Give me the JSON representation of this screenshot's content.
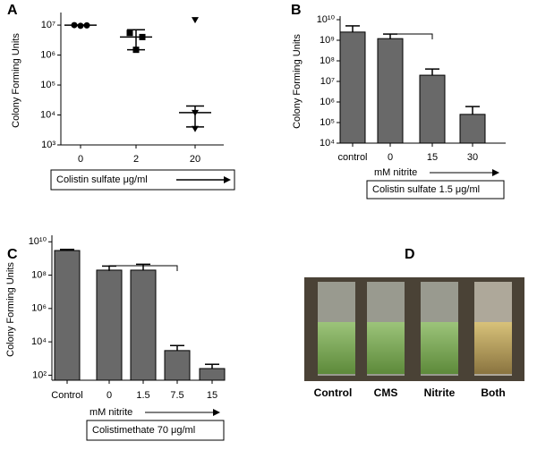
{
  "chart_data": [
    {
      "type": "scatter",
      "panel": "A",
      "ylabel": "Colony Forming Units",
      "xlabel": "Colistin sulfate μg/ml",
      "categories": [
        "0",
        "2",
        "20"
      ],
      "points": [
        [
          10000000,
          9500000,
          9800000
        ],
        [
          5500000,
          1500000,
          4000000
        ],
        [
          15000000,
          3500,
          12000
        ]
      ],
      "values": [
        10000000,
        4000000,
        12000
      ],
      "upper": [
        10000000,
        7000000,
        20000
      ],
      "lower": [
        10000000,
        1500000,
        4000
      ],
      "log_y": true,
      "ylim": [
        1000,
        20000000
      ],
      "yticks": [
        {
          "value": 1000,
          "label": "10³"
        },
        {
          "value": 10000,
          "label": "10⁴"
        },
        {
          "value": 100000,
          "label": "10⁵"
        },
        {
          "value": 1000000,
          "label": "10⁶"
        },
        {
          "value": 10000000,
          "label": "10⁷"
        }
      ],
      "color": "#000000"
    },
    {
      "type": "bar",
      "panel": "B",
      "ylabel": "Colony Forming Units",
      "annotation": "mM nitrite",
      "xlabel": "Colistin sulfate 1.5 μg/ml",
      "categories": [
        "control",
        "0",
        "15",
        "30"
      ],
      "values": [
        2500000000,
        1200000000,
        20000000,
        250000
      ],
      "errors": [
        5000000000,
        2000000000,
        40000000,
        600000
      ],
      "log_y": true,
      "ylim": [
        10000,
        10000000000
      ],
      "yticks": [
        {
          "value": 10000,
          "label": "10⁴"
        },
        {
          "value": 100000,
          "label": "10⁵"
        },
        {
          "value": 1000000,
          "label": "10⁶"
        },
        {
          "value": 10000000,
          "label": "10⁷"
        },
        {
          "value": 100000000,
          "label": "10⁸"
        },
        {
          "value": 1000000000,
          "label": "10⁹"
        },
        {
          "value": 10000000000,
          "label": "10¹⁰"
        }
      ],
      "color": "#696969"
    },
    {
      "type": "bar",
      "panel": "C",
      "ylabel": "Colony Forming Units",
      "annotation": "mM nitrite",
      "xlabel": "Colistimethate 70 μg/ml",
      "categories": [
        "Control",
        "0",
        "1.5",
        "7.5",
        "15"
      ],
      "values": [
        3000000000,
        200000000,
        200000000,
        3000,
        250
      ],
      "errors": [
        3500000000,
        350000000,
        450000000,
        6000,
        450
      ],
      "log_y": true,
      "ylim": [
        50,
        15000000000
      ],
      "yticks": [
        {
          "value": 100,
          "label": "10²"
        },
        {
          "value": 10000,
          "label": "10⁴"
        },
        {
          "value": 1000000,
          "label": "10⁶"
        },
        {
          "value": 100000000,
          "label": "10⁸"
        },
        {
          "value": 10000000000,
          "label": "10¹⁰"
        }
      ],
      "color": "#696969"
    }
  ],
  "photo": {
    "panel": "D",
    "labels": [
      "Control",
      "CMS",
      "Nitrite",
      "Both"
    ]
  }
}
